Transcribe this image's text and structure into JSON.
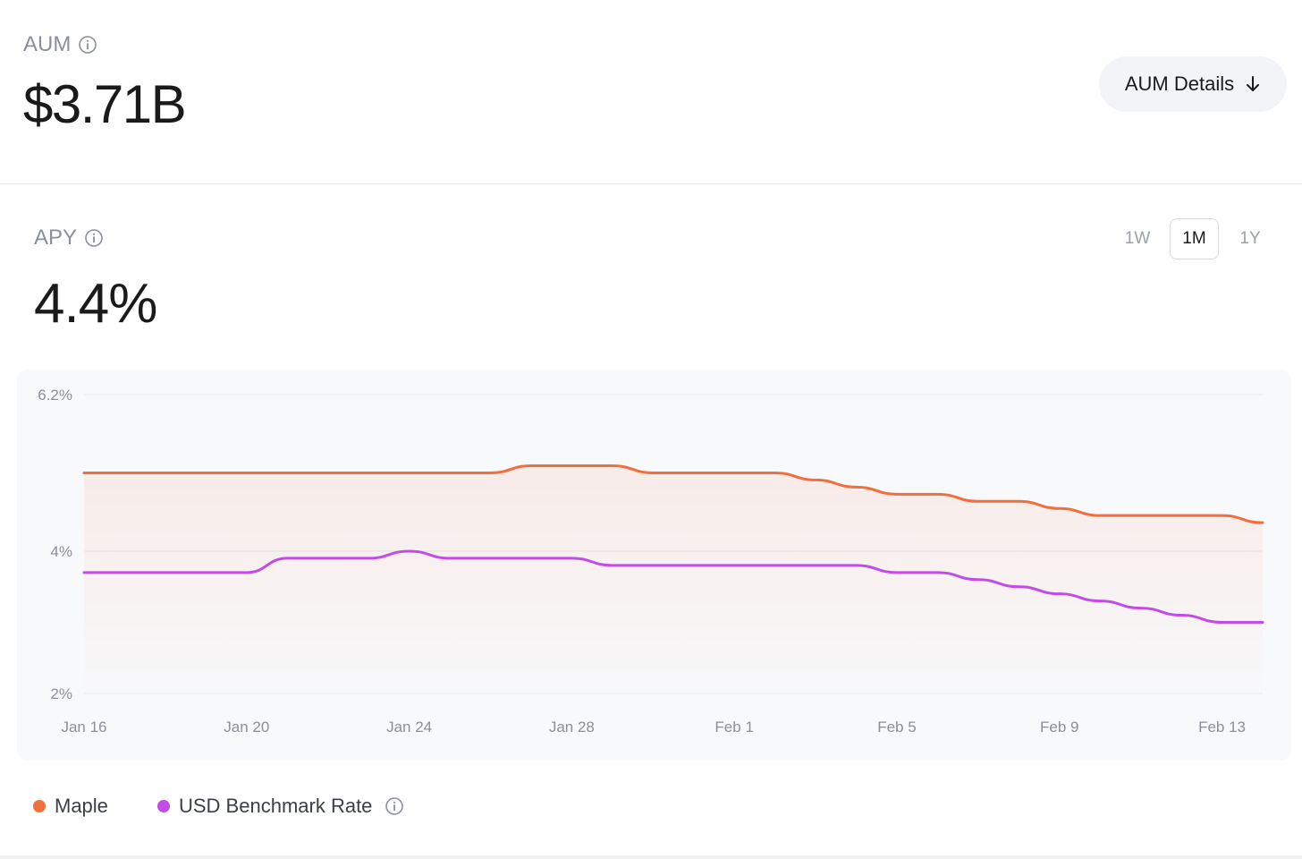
{
  "aum": {
    "label": "AUM",
    "value": "$3.71B",
    "details_button": "AUM Details"
  },
  "apy": {
    "label": "APY",
    "value": "4.4%"
  },
  "ranges": {
    "w1": "1W",
    "m1": "1M",
    "y1": "1Y",
    "selected": "1M"
  },
  "legend": {
    "maple": "Maple",
    "benchmark": "USD Benchmark Rate"
  },
  "colors": {
    "maple": "#f26e3d",
    "benchmark": "#c24ce8"
  },
  "chart_data": {
    "type": "line",
    "title": "APY",
    "xlabel": "",
    "ylabel": "",
    "ylim": [
      1.9,
      6.3
    ],
    "yticks": [
      {
        "value": 2,
        "label": "2%"
      },
      {
        "value": 4,
        "label": "4%"
      },
      {
        "value": 6.2,
        "label": "6.2%"
      }
    ],
    "xticks": [
      {
        "value": 0,
        "label": "Jan 16"
      },
      {
        "value": 4,
        "label": "Jan 20"
      },
      {
        "value": 8,
        "label": "Jan 24"
      },
      {
        "value": 12,
        "label": "Jan 28"
      },
      {
        "value": 16,
        "label": "Feb 1"
      },
      {
        "value": 20,
        "label": "Feb 5"
      },
      {
        "value": 24,
        "label": "Feb 9"
      },
      {
        "value": 28,
        "label": "Feb 13"
      }
    ],
    "x": [
      0,
      1,
      2,
      3,
      4,
      5,
      6,
      7,
      8,
      9,
      10,
      11,
      12,
      13,
      14,
      15,
      16,
      17,
      18,
      19,
      20,
      21,
      22,
      23,
      24,
      25,
      26,
      27,
      28,
      29
    ],
    "series": [
      {
        "name": "Maple",
        "values": [
          5.1,
          5.1,
          5.1,
          5.1,
          5.1,
          5.1,
          5.1,
          5.1,
          5.1,
          5.1,
          5.1,
          5.2,
          5.2,
          5.2,
          5.1,
          5.1,
          5.1,
          5.1,
          5.0,
          4.9,
          4.8,
          4.8,
          4.7,
          4.7,
          4.6,
          4.5,
          4.5,
          4.5,
          4.5,
          4.4
        ]
      },
      {
        "name": "USD Benchmark Rate",
        "values": [
          3.7,
          3.7,
          3.7,
          3.7,
          3.7,
          3.9,
          3.9,
          3.9,
          4.0,
          3.9,
          3.9,
          3.9,
          3.9,
          3.8,
          3.8,
          3.8,
          3.8,
          3.8,
          3.8,
          3.8,
          3.7,
          3.7,
          3.6,
          3.5,
          3.4,
          3.3,
          3.2,
          3.1,
          3.0,
          3.0
        ]
      }
    ]
  }
}
